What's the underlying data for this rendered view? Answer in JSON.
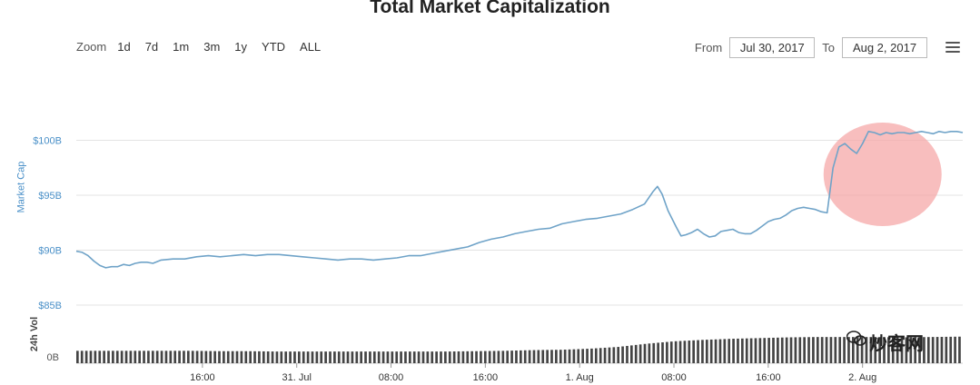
{
  "chart_data": {
    "type": "line",
    "title": "Total Market Capitalization",
    "ylabel": "Market Cap",
    "volume_label": "24h Vol",
    "y_ticks": [
      "$85B",
      "$90B",
      "$95B",
      "$100B"
    ],
    "y_tick_values": [
      85,
      90,
      95,
      100
    ],
    "ylim": [
      85,
      101.2
    ],
    "volume_tick": "0B",
    "x_ticks": [
      "16:00",
      "31. Jul",
      "08:00",
      "16:00",
      "1. Aug",
      "08:00",
      "16:00",
      "2. Aug"
    ],
    "x_tick_hours": [
      16,
      24,
      32,
      40,
      48,
      56,
      64,
      72
    ],
    "x_range_hours": [
      5.3,
      80.5
    ],
    "series": [
      {
        "hours": [
          5.3,
          5.8,
          6.3,
          6.8,
          7.3,
          7.8,
          8.3,
          8.8,
          9.3,
          9.8,
          10.3,
          10.8,
          11.3,
          11.8,
          12.5,
          13.5,
          14.5,
          15.5,
          16.5,
          17.5,
          18.5,
          19.5,
          20.5,
          21.5,
          22.5,
          23.5,
          24.5,
          25.5,
          26.5,
          27.5,
          28.5,
          29.5,
          30.5,
          31.5,
          32.5,
          33.5,
          34.5,
          35.5,
          36.5,
          37.5,
          38.5,
          39.5,
          40.5,
          41.5,
          42.5,
          43.5,
          44.5,
          45.5,
          46.5,
          47.5,
          48.5,
          49.5,
          50.5,
          51.5,
          52.5,
          53.5,
          54.2,
          54.6,
          55.0,
          55.5,
          56.2,
          56.6,
          57.0,
          57.5,
          58.0,
          58.5,
          59.0,
          59.5,
          60.0,
          60.5,
          61.0,
          61.5,
          62.0,
          62.5,
          63.0,
          63.5,
          64.0,
          64.5,
          65.0,
          65.5,
          66.0,
          66.5,
          67.0,
          67.5,
          68.0,
          68.5,
          69.0,
          69.5,
          70.0,
          70.5,
          71.0,
          71.5,
          72.0,
          72.5,
          73.0,
          73.5,
          74.0,
          74.5,
          75.0,
          75.5,
          76.0,
          76.5,
          77.0,
          77.5,
          78.0,
          78.5,
          79.0,
          79.5,
          80.0,
          80.5
        ],
        "values": [
          89.9,
          89.8,
          89.5,
          89.0,
          88.6,
          88.4,
          88.5,
          88.5,
          88.7,
          88.6,
          88.8,
          88.9,
          88.9,
          88.8,
          89.1,
          89.2,
          89.2,
          89.4,
          89.5,
          89.4,
          89.5,
          89.6,
          89.5,
          89.6,
          89.6,
          89.5,
          89.4,
          89.3,
          89.2,
          89.1,
          89.2,
          89.2,
          89.1,
          89.2,
          89.3,
          89.5,
          89.5,
          89.7,
          89.9,
          90.1,
          90.3,
          90.7,
          91.0,
          91.2,
          91.5,
          91.7,
          91.9,
          92.0,
          92.4,
          92.6,
          92.8,
          92.9,
          93.1,
          93.3,
          93.7,
          94.2,
          95.3,
          95.8,
          95.1,
          93.6,
          92.1,
          91.3,
          91.4,
          91.6,
          91.9,
          91.5,
          91.2,
          91.3,
          91.7,
          91.8,
          91.9,
          91.6,
          91.5,
          91.5,
          91.8,
          92.2,
          92.6,
          92.8,
          92.9,
          93.2,
          93.6,
          93.8,
          93.9,
          93.8,
          93.7,
          93.5,
          93.4,
          97.5,
          99.4,
          99.7,
          99.2,
          98.8,
          99.7,
          100.8,
          100.7,
          100.5,
          100.7,
          100.6,
          100.7,
          100.7,
          100.6,
          100.7,
          100.8,
          100.7,
          100.6,
          100.8,
          100.7,
          100.8,
          100.8,
          100.7
        ],
        "color": "#6fa3c8"
      }
    ],
    "volume_relative": [
      0.35,
      0.35,
      0.35,
      0.35,
      0.35,
      0.34,
      0.34,
      0.33,
      0.33,
      0.33,
      0.33,
      0.33,
      0.33,
      0.33,
      0.34,
      0.35,
      0.37,
      0.38,
      0.41,
      0.46,
      0.55,
      0.62,
      0.66,
      0.69,
      0.71,
      0.73,
      0.74,
      0.74,
      0.74,
      0.73,
      0.74,
      0.75
    ],
    "annotation_color": "#f6a8a8",
    "line_color": "#6fa3c8",
    "volume_color": "#444444",
    "grid": true
  },
  "controls": {
    "zoom_label": "Zoom",
    "zoom_options": [
      "1d",
      "7d",
      "1m",
      "3m",
      "1y",
      "YTD",
      "ALL"
    ],
    "from_label": "From",
    "from_value": "Jul 30, 2017",
    "to_label": "To",
    "to_value": "Aug 2, 2017",
    "menu_icon": "hamburger-menu-icon"
  },
  "watermark": {
    "text": "炒客网",
    "icon": "wechat-icon"
  }
}
